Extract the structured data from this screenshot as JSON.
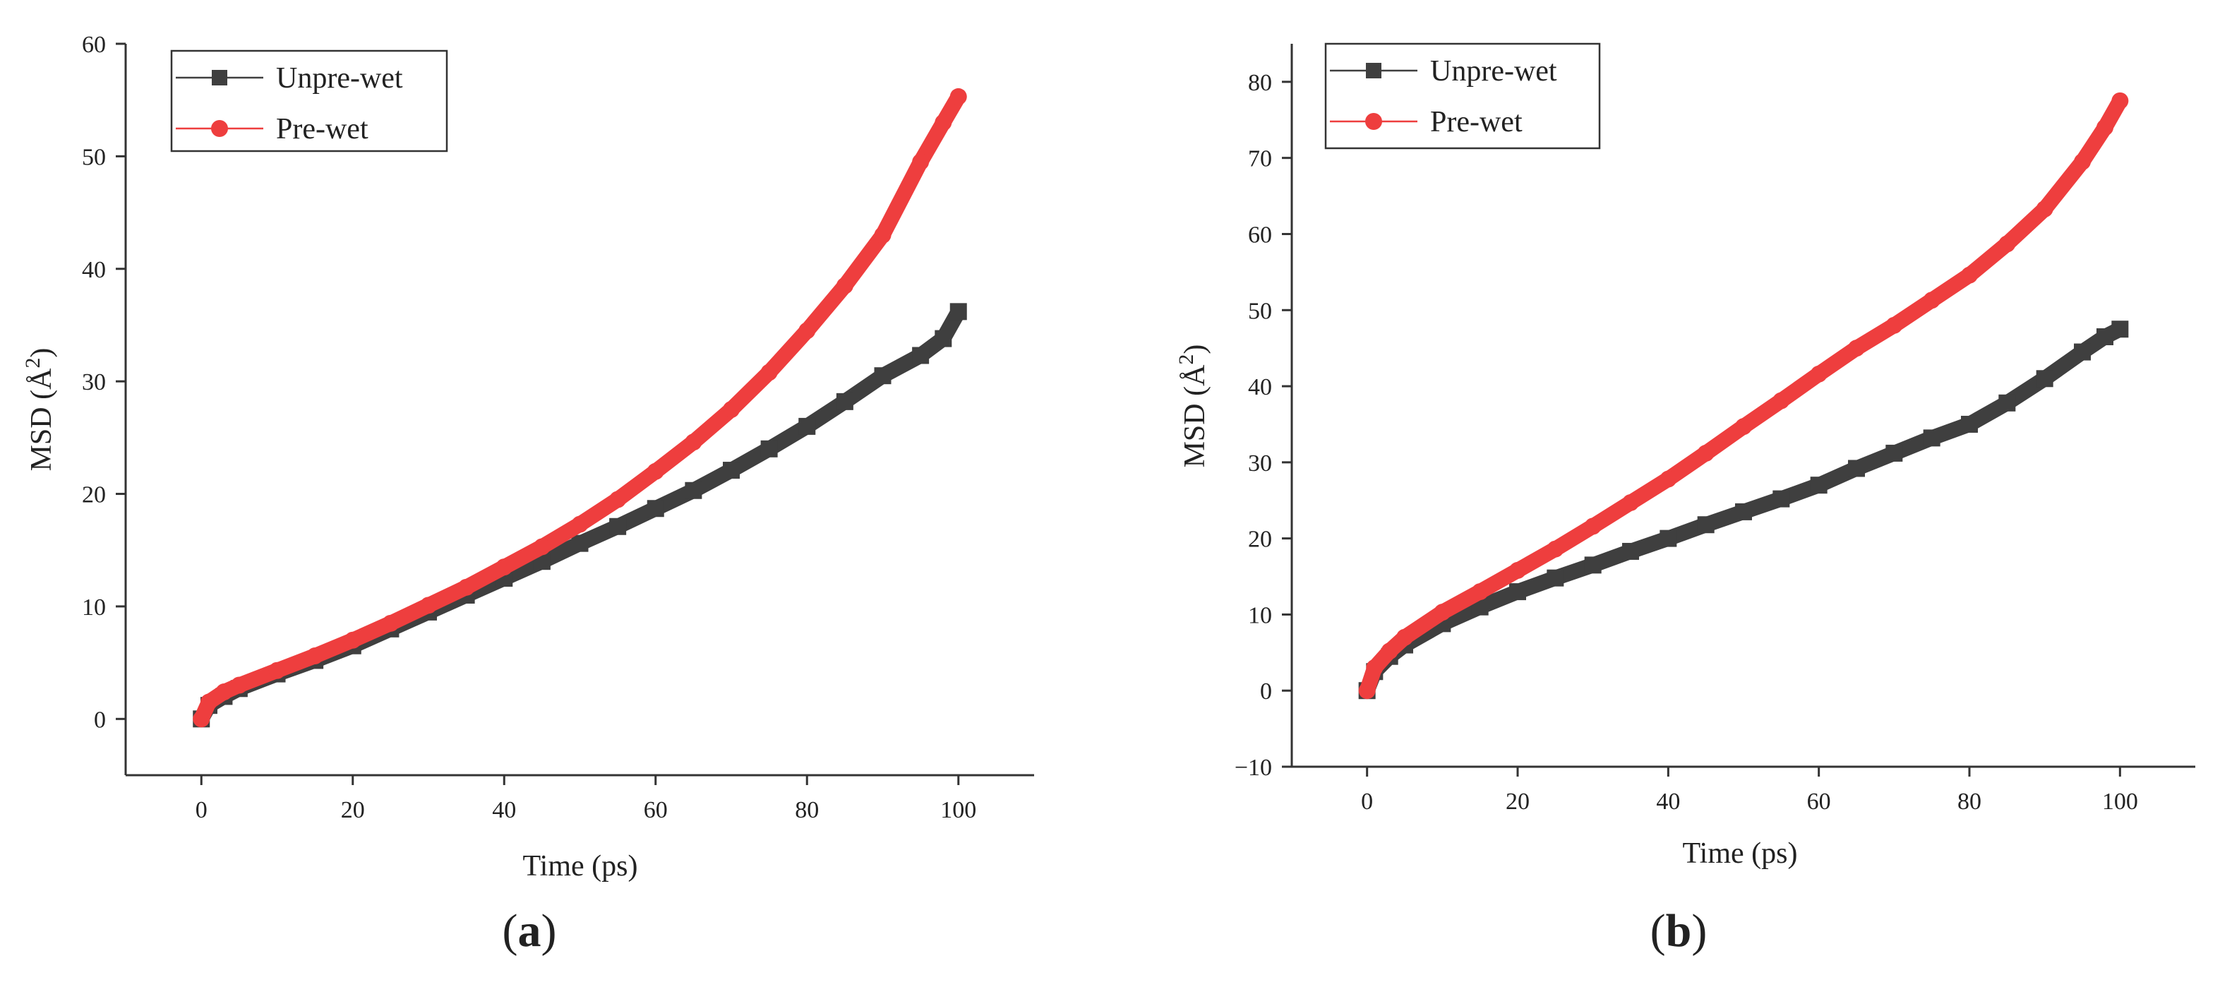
{
  "colors": {
    "unprewet": "#3f3f3f",
    "prewet": "#ee3e3e",
    "axis": "#333333"
  },
  "chart_data": [
    {
      "type": "line",
      "panel": "a",
      "panel_label": "a",
      "xlabel": "Time (ps)",
      "ylabel_main": "MSD (Å",
      "ylabel_sup": "2",
      "ylabel_close": ")",
      "xlim": [
        -10,
        110
      ],
      "ylim": [
        -5,
        60
      ],
      "xticks": [
        0,
        20,
        40,
        60,
        80,
        100
      ],
      "yticks": [
        0,
        10,
        20,
        30,
        40,
        50,
        60
      ],
      "legend": {
        "position": "top-left"
      },
      "series": [
        {
          "name": "Unpre-wet",
          "color": "#3f3f3f",
          "marker": "square",
          "x": [
            0,
            1,
            3,
            5,
            10,
            15,
            20,
            25,
            30,
            35,
            40,
            45,
            50,
            55,
            60,
            65,
            70,
            75,
            80,
            85,
            90,
            95,
            98,
            100
          ],
          "y": [
            0,
            1.2,
            2.0,
            2.7,
            4.0,
            5.2,
            6.5,
            8.0,
            9.5,
            11.0,
            12.5,
            14.0,
            15.6,
            17.1,
            18.7,
            20.3,
            22.1,
            24.0,
            26.0,
            28.2,
            30.5,
            32.3,
            33.8,
            36.2
          ]
        },
        {
          "name": "Pre-wet",
          "color": "#ee3e3e",
          "marker": "circle",
          "x": [
            0,
            1,
            3,
            5,
            10,
            15,
            20,
            25,
            30,
            35,
            40,
            45,
            50,
            55,
            60,
            65,
            70,
            75,
            80,
            85,
            90,
            95,
            98,
            100
          ],
          "y": [
            0,
            1.5,
            2.4,
            3.0,
            4.3,
            5.6,
            7.0,
            8.5,
            10.1,
            11.7,
            13.5,
            15.3,
            17.3,
            19.5,
            22.0,
            24.6,
            27.5,
            30.8,
            34.5,
            38.5,
            43.0,
            49.5,
            53.0,
            55.3
          ]
        }
      ]
    },
    {
      "type": "line",
      "panel": "b",
      "panel_label": "b",
      "xlabel": "Time (ps)",
      "ylabel_main": "MSD (Å",
      "ylabel_sup": "2",
      "ylabel_close": ")",
      "xlim": [
        -10,
        110
      ],
      "ylim": [
        -10,
        85
      ],
      "xticks": [
        0,
        20,
        40,
        60,
        80,
        100
      ],
      "yticks": [
        -10,
        0,
        10,
        20,
        30,
        40,
        50,
        60,
        70,
        80
      ],
      "legend": {
        "position": "top-left"
      },
      "series": [
        {
          "name": "Unpre-wet",
          "color": "#3f3f3f",
          "marker": "square",
          "x": [
            0,
            1,
            3,
            5,
            10,
            15,
            20,
            25,
            30,
            35,
            40,
            45,
            50,
            55,
            60,
            65,
            70,
            75,
            80,
            85,
            90,
            95,
            98,
            100
          ],
          "y": [
            0,
            2.5,
            4.5,
            6.0,
            8.8,
            11.0,
            13.0,
            14.8,
            16.5,
            18.3,
            20.0,
            21.8,
            23.5,
            25.2,
            27.0,
            29.2,
            31.2,
            33.2,
            35.0,
            37.8,
            41.0,
            44.5,
            46.5,
            47.5
          ]
        },
        {
          "name": "Pre-wet",
          "color": "#ee3e3e",
          "marker": "circle",
          "x": [
            0,
            1,
            3,
            5,
            10,
            15,
            20,
            25,
            30,
            35,
            40,
            45,
            50,
            55,
            60,
            65,
            70,
            75,
            80,
            85,
            90,
            95,
            98,
            100
          ],
          "y": [
            0,
            3.0,
            5.2,
            7.0,
            10.3,
            13.0,
            15.8,
            18.6,
            21.6,
            24.7,
            27.8,
            31.2,
            34.7,
            38.1,
            41.6,
            45.0,
            48.0,
            51.3,
            54.6,
            58.7,
            63.3,
            69.5,
            74.0,
            77.5
          ]
        }
      ]
    }
  ]
}
